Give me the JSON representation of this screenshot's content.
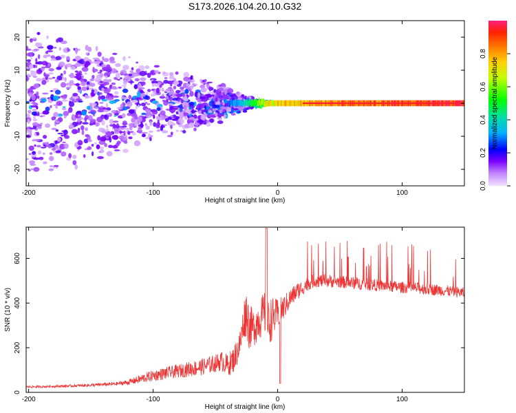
{
  "title": "S173.2026.104.20.10.G32",
  "chart_data": [
    {
      "type": "heatmap",
      "xlabel": "Height of straight line (km)",
      "ylabel": "Frequency (Hz)",
      "xlim": [
        -202,
        150
      ],
      "ylim": [
        -25,
        25
      ],
      "xticks": [
        -200,
        -100,
        0,
        100
      ],
      "xtick_labels": [
        "-200",
        "-100",
        "0",
        "100"
      ],
      "yticks": [
        -20,
        -10,
        0,
        10,
        20
      ],
      "ytick_labels": [
        "-20",
        "-10",
        "0",
        "10",
        "20"
      ],
      "colorbar": {
        "label": "Normalized spectral amplitude",
        "range": [
          0,
          1
        ],
        "ticks": [
          0,
          0.2,
          0.4,
          0.6,
          0.8
        ],
        "tick_labels": [
          "0.0",
          "0.2",
          "0.4",
          "0.6",
          "0.8"
        ]
      },
      "description_points": [
        {
          "x": -200,
          "scatter_hz": 25,
          "amp": 0.1
        },
        {
          "x": -100,
          "scatter_hz": 12,
          "amp": 0.15
        },
        {
          "x": -50,
          "scatter_hz": 7,
          "amp": 0.2
        },
        {
          "x": -30,
          "scatter_hz": 3,
          "amp": 0.35
        },
        {
          "x": -10,
          "scatter_hz": 1,
          "amp": 0.7
        },
        {
          "x": 0,
          "scatter_hz": 0.5,
          "amp": 0.75
        },
        {
          "x": 50,
          "scatter_hz": 0.5,
          "amp": 0.85
        },
        {
          "x": 150,
          "scatter_hz": 0.5,
          "amp": 0.95
        }
      ]
    },
    {
      "type": "line",
      "xlabel": "Height of straight line (km)",
      "ylabel": "SNR (10 * v/v)",
      "xlim": [
        -202,
        150
      ],
      "ylim": [
        0,
        740
      ],
      "xticks": [
        -200,
        -100,
        0,
        100
      ],
      "xtick_labels": [
        "-200",
        "-100",
        "0",
        "100"
      ],
      "yticks": [
        0,
        200,
        400,
        600
      ],
      "ytick_labels": [
        "0",
        "200",
        "400",
        "600"
      ],
      "series": [
        {
          "name": "SNR",
          "color": "#ee3333",
          "x": [
            -202,
            -190,
            -180,
            -170,
            -160,
            -150,
            -140,
            -130,
            -120,
            -110,
            -100,
            -90,
            -80,
            -70,
            -60,
            -50,
            -45,
            -40,
            -35,
            -30,
            -27,
            -25,
            -23,
            -20,
            -18,
            -15,
            -12,
            -10,
            -8,
            -5,
            -2,
            0,
            5,
            10,
            15,
            20,
            25,
            30,
            40,
            50,
            60,
            70,
            80,
            90,
            100,
            110,
            120,
            130,
            140,
            150
          ],
          "y": [
            25,
            25,
            27,
            28,
            30,
            32,
            35,
            38,
            45,
            60,
            75,
            85,
            95,
            105,
            115,
            130,
            140,
            120,
            150,
            220,
            330,
            360,
            300,
            290,
            300,
            330,
            340,
            360,
            300,
            330,
            340,
            350,
            380,
            420,
            450,
            470,
            490,
            500,
            500,
            495,
            490,
            485,
            480,
            475,
            470,
            468,
            462,
            458,
            452,
            445
          ],
          "noise": [
            5,
            5,
            5,
            6,
            6,
            7,
            8,
            8,
            12,
            20,
            25,
            28,
            30,
            35,
            38,
            40,
            45,
            50,
            60,
            70,
            90,
            110,
            110,
            80,
            90,
            90,
            100,
            110,
            110,
            100,
            80,
            70,
            55,
            45,
            40,
            35,
            32,
            30,
            30,
            28,
            28,
            28,
            27,
            27,
            26,
            26,
            26,
            26,
            25,
            25
          ]
        }
      ]
    }
  ]
}
